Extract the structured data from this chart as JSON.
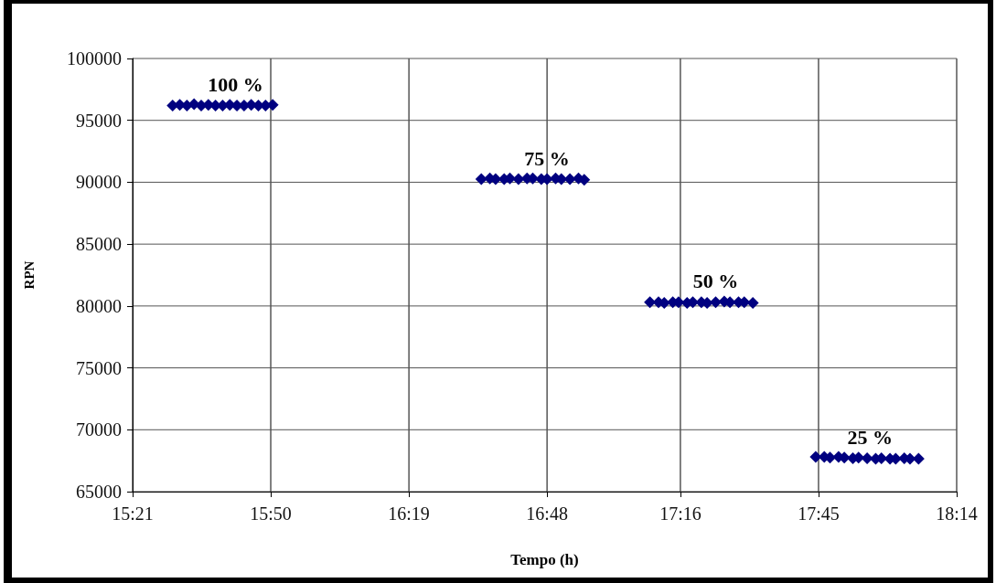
{
  "chart_data": {
    "type": "scatter",
    "xlabel": "Tempo (h)",
    "ylabel": "RPN",
    "marker": "diamond",
    "grid": true,
    "x": [
      15.49,
      15.515,
      15.54,
      15.565,
      15.59,
      15.615,
      15.64,
      15.665,
      15.69,
      15.715,
      15.74,
      15.765,
      15.79,
      15.815,
      15.84,
      16.57,
      16.6,
      16.62,
      16.65,
      16.67,
      16.7,
      16.73,
      16.75,
      16.78,
      16.8,
      16.83,
      16.85,
      16.88,
      16.91,
      16.93,
      17.16,
      17.19,
      17.21,
      17.24,
      17.26,
      17.29,
      17.31,
      17.34,
      17.36,
      17.39,
      17.42,
      17.44,
      17.47,
      17.49,
      17.52,
      17.74,
      17.77,
      17.79,
      17.82,
      17.84,
      17.87,
      17.89,
      17.92,
      17.95,
      17.97,
      18.0,
      18.02,
      18.05,
      18.07,
      18.1
    ],
    "series": [
      {
        "color": "#000080",
        "values": [
          96200,
          96250,
          96200,
          96300,
          96200,
          96250,
          96200,
          96200,
          96250,
          96200,
          96200,
          96250,
          96200,
          96200,
          96250,
          90250,
          90300,
          90250,
          90250,
          90300,
          90250,
          90300,
          90300,
          90250,
          90250,
          90300,
          90250,
          90250,
          90300,
          90200,
          80300,
          80300,
          80250,
          80300,
          80300,
          80250,
          80300,
          80300,
          80250,
          80300,
          80350,
          80300,
          80300,
          80300,
          80250,
          67800,
          67800,
          67750,
          67800,
          67750,
          67700,
          67750,
          67700,
          67650,
          67700,
          67650,
          67650,
          67700,
          67650,
          67650
        ]
      }
    ],
    "xlim": [
      15.35,
      18.2333
    ],
    "xticks": [
      {
        "value": 15.35,
        "label": "15:21"
      },
      {
        "value": 15.8333,
        "label": "15:50"
      },
      {
        "value": 16.3167,
        "label": "16:19"
      },
      {
        "value": 16.8,
        "label": "16:48"
      },
      {
        "value": 17.2667,
        "label": "17:16"
      },
      {
        "value": 17.75,
        "label": "17:45"
      },
      {
        "value": 18.2333,
        "label": "18:14"
      }
    ],
    "ylim": [
      65000,
      100000
    ],
    "yticks": [
      65000,
      70000,
      75000,
      80000,
      85000,
      90000,
      95000,
      100000
    ],
    "annotations": [
      {
        "text": "100 %",
        "x": 15.71,
        "y": 96200
      },
      {
        "text": "75 %",
        "x": 16.8,
        "y": 90250
      },
      {
        "text": "50 %",
        "x": 17.39,
        "y": 80300
      },
      {
        "text": "25 %",
        "x": 17.93,
        "y": 67700
      }
    ]
  }
}
